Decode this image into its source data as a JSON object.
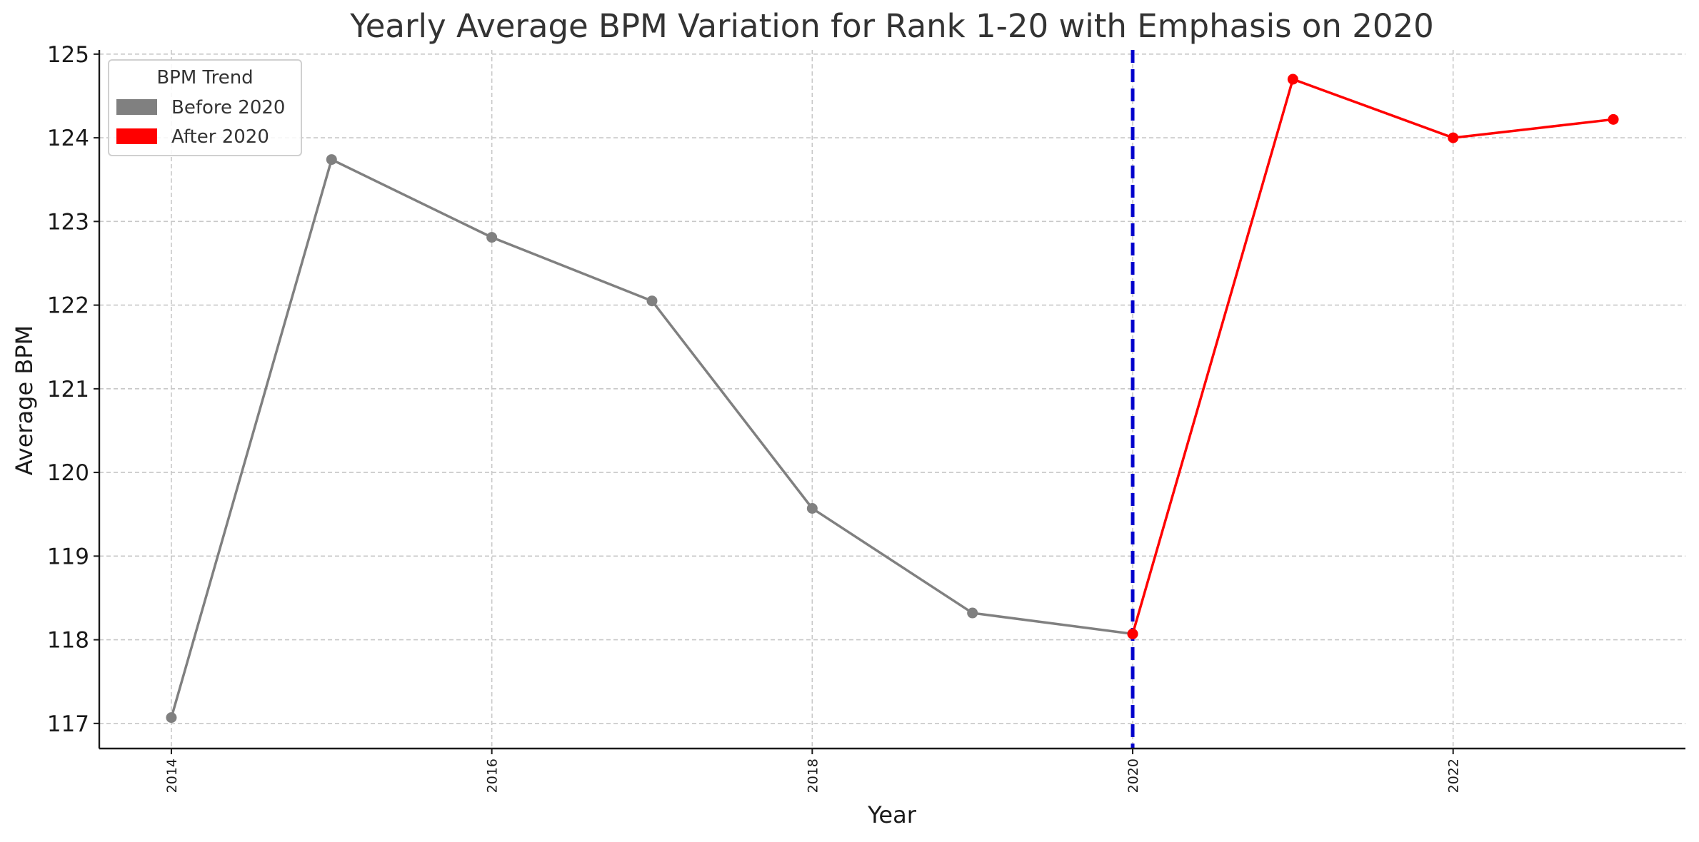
{
  "chart_data": {
    "type": "line",
    "title": "Yearly Average BPM Variation for Rank 1-20 with Emphasis on 2020",
    "xlabel": "Year",
    "ylabel": "Average BPM",
    "xlim": [
      2013.55,
      2023.45
    ],
    "ylim": [
      116.7,
      125.05
    ],
    "x_ticks": [
      2014,
      2016,
      2018,
      2020,
      2022
    ],
    "y_ticks": [
      117,
      118,
      119,
      120,
      121,
      122,
      123,
      124,
      125
    ],
    "grid": true,
    "series": [
      {
        "name": "Before 2020",
        "color": "#808080",
        "points": [
          {
            "x": 2014,
            "y": 117.07
          },
          {
            "x": 2015,
            "y": 123.74
          },
          {
            "x": 2016,
            "y": 122.81
          },
          {
            "x": 2017,
            "y": 122.05
          },
          {
            "x": 2018,
            "y": 119.57
          },
          {
            "x": 2019,
            "y": 118.32
          },
          {
            "x": 2020,
            "y": 118.07
          }
        ]
      },
      {
        "name": "After 2020",
        "color": "#ff0000",
        "points": [
          {
            "x": 2020,
            "y": 118.07
          },
          {
            "x": 2021,
            "y": 124.7
          },
          {
            "x": 2022,
            "y": 124.0
          },
          {
            "x": 2023,
            "y": 124.22
          }
        ]
      }
    ],
    "reference_line": {
      "x": 2020,
      "color": "#0000cc",
      "style": "dashed"
    },
    "legend": {
      "title": "BPM Trend",
      "position": "top-left",
      "entries": [
        {
          "label": "Before 2020",
          "color": "#808080"
        },
        {
          "label": "After 2020",
          "color": "#ff0000"
        }
      ]
    }
  }
}
